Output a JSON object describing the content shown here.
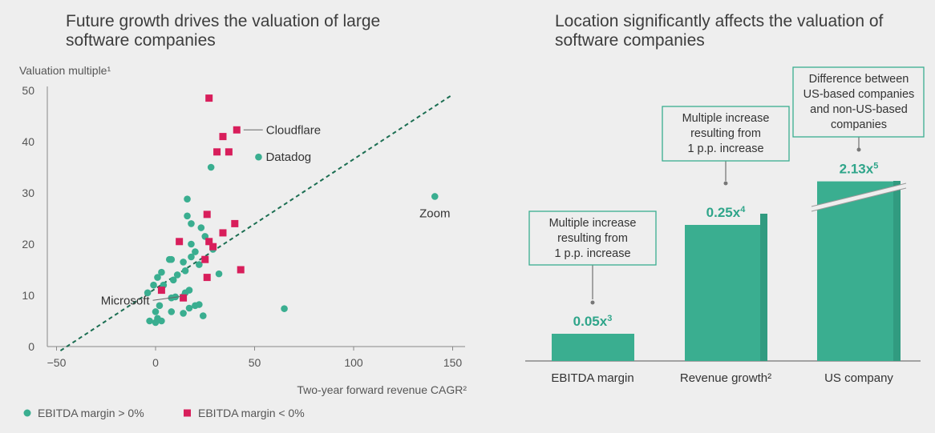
{
  "colors": {
    "green": "#3aae90",
    "red": "#d81e5b",
    "accent_text": "#2fa58a",
    "box_border": "#3aae90"
  },
  "chart_data": [
    {
      "type": "scatter",
      "title_lines": [
        "Future growth drives the valuation of large",
        "software companies"
      ],
      "ylabel": "Valuation multiple¹",
      "xlabel": "Two-year forward revenue CAGR²",
      "xlim": [
        -55,
        150
      ],
      "ylim": [
        0,
        50
      ],
      "xticks": [
        "−50",
        "0",
        "50",
        "100",
        "150"
      ],
      "xtick_values": [
        -50,
        0,
        50,
        100,
        150
      ],
      "yticks": [
        "0",
        "10",
        "20",
        "30",
        "40",
        "50"
      ],
      "ytick_values": [
        0,
        10,
        20,
        30,
        40,
        50
      ],
      "trendline": {
        "x": [
          -48,
          150
        ],
        "y": [
          -0.8,
          49.2
        ],
        "style": "dashed"
      },
      "legend": [
        {
          "label": "EBITDA margin > 0%",
          "marker": "circle",
          "color": "#3aae90"
        },
        {
          "label": "EBITDA margin < 0%",
          "marker": "square",
          "color": "#d81e5b"
        }
      ],
      "annotations": [
        {
          "label": "Cloudflare",
          "x": 42,
          "y": 42.3,
          "anchor": "right"
        },
        {
          "label": "Datadog",
          "x": 52,
          "y": 37,
          "anchor": "right"
        },
        {
          "label": "Zoom",
          "x": 141,
          "y": 29.3,
          "anchor": "below"
        },
        {
          "label": "Microsoft",
          "x": 14,
          "y": 9.8,
          "anchor": "left"
        }
      ],
      "series": [
        {
          "name": "EBITDA margin > 0%",
          "marker": "circle",
          "points": [
            [
              28,
              35
            ],
            [
              52,
              37
            ],
            [
              141,
              29.3
            ],
            [
              16,
              28.8
            ],
            [
              16,
              25.5
            ],
            [
              18,
              24
            ],
            [
              23,
              23.2
            ],
            [
              18,
              20
            ],
            [
              25,
              21.5
            ],
            [
              29,
              19
            ],
            [
              20,
              18.5
            ],
            [
              7,
              17
            ],
            [
              8,
              17
            ],
            [
              14,
              16.5
            ],
            [
              18,
              17.5
            ],
            [
              22,
              16
            ],
            [
              3,
              14.5
            ],
            [
              11,
              14
            ],
            [
              15,
              14.8
            ],
            [
              1,
              13.5
            ],
            [
              9,
              13
            ],
            [
              -1,
              12
            ],
            [
              4,
              12
            ],
            [
              17,
              11
            ],
            [
              15,
              10.5
            ],
            [
              32,
              14.2
            ],
            [
              -4,
              10.5
            ],
            [
              8,
              9.5
            ],
            [
              10,
              9.7
            ],
            [
              14,
              9.8
            ],
            [
              2,
              8
            ],
            [
              17,
              7.5
            ],
            [
              20,
              8
            ],
            [
              22,
              8.2
            ],
            [
              0,
              6.8
            ],
            [
              8,
              6.8
            ],
            [
              14,
              6.5
            ],
            [
              24,
              6
            ],
            [
              1,
              5.5
            ],
            [
              -3,
              5
            ],
            [
              3,
              5
            ],
            [
              0,
              4.7
            ],
            [
              65,
              7.4
            ]
          ]
        },
        {
          "name": "EBITDA margin < 0%",
          "marker": "square",
          "points": [
            [
              27,
              48.5
            ],
            [
              41,
              42.3
            ],
            [
              34,
              41
            ],
            [
              31,
              38
            ],
            [
              37,
              38
            ],
            [
              26,
              25.8
            ],
            [
              40,
              24
            ],
            [
              34,
              22.2
            ],
            [
              12,
              20.5
            ],
            [
              27,
              20.5
            ],
            [
              29,
              19.5
            ],
            [
              25,
              17
            ],
            [
              43,
              15
            ],
            [
              26,
              13.5
            ],
            [
              3,
              11
            ],
            [
              14,
              9.5
            ]
          ]
        }
      ]
    },
    {
      "type": "bar",
      "title_lines": [
        "Location significantly affects the valuation of",
        "software companies"
      ],
      "categories": [
        "EBITDA margin",
        "Revenue growth²",
        "US company"
      ],
      "values": [
        0.05,
        0.25,
        2.13
      ],
      "value_labels": [
        {
          "value": "0.05x",
          "sup": "3"
        },
        {
          "value": "0.25x",
          "sup": "4"
        },
        {
          "value": "2.13x",
          "sup": "5"
        }
      ],
      "bar_heights_relative": [
        0.05,
        0.25,
        0.33
      ],
      "axis_break_on": "US company",
      "callouts": [
        [
          "Multiple increase",
          "resulting from",
          "1 p.p. increase"
        ],
        [
          "Multiple increase",
          "resulting from",
          "1 p.p. increase"
        ],
        [
          "Difference between",
          "US-based companies",
          "and non-US-based",
          "companies"
        ]
      ]
    }
  ]
}
